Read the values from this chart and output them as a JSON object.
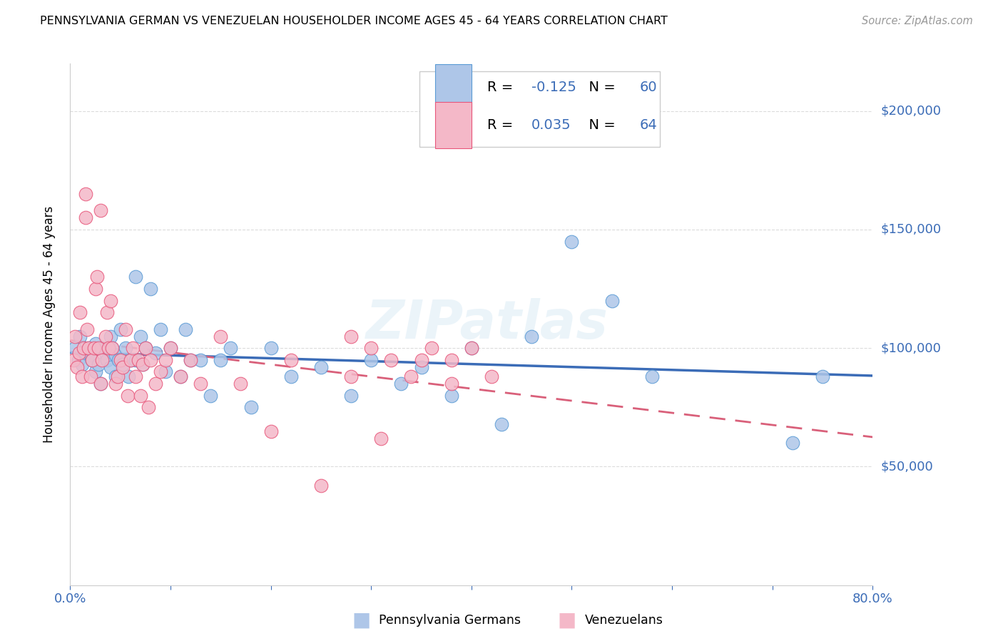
{
  "title": "PENNSYLVANIA GERMAN VS VENEZUELAN HOUSEHOLDER INCOME AGES 45 - 64 YEARS CORRELATION CHART",
  "source": "Source: ZipAtlas.com",
  "ylabel": "Householder Income Ages 45 - 64 years",
  "ytick_labels": [
    "$50,000",
    "$100,000",
    "$150,000",
    "$200,000"
  ],
  "ytick_values": [
    50000,
    100000,
    150000,
    200000
  ],
  "ylim": [
    0,
    220000
  ],
  "xlim": [
    0.0,
    0.8
  ],
  "R_blue": -0.125,
  "N_blue": 60,
  "R_pink": 0.035,
  "N_pink": 64,
  "color_blue_fill": "#AEC6E8",
  "color_pink_fill": "#F4B8C8",
  "color_blue_edge": "#5B9BD5",
  "color_pink_edge": "#E8567A",
  "color_blue_line": "#3B6CB7",
  "color_pink_line": "#D9607A",
  "color_blue_text": "#3B6CB7",
  "color_axis_text": "#3B6CB7",
  "color_grid": "#CCCCCC",
  "watermark": "ZIPatlas",
  "blue_scatter_x": [
    0.005,
    0.008,
    0.01,
    0.012,
    0.015,
    0.018,
    0.02,
    0.022,
    0.025,
    0.025,
    0.028,
    0.03,
    0.032,
    0.035,
    0.037,
    0.04,
    0.04,
    0.042,
    0.045,
    0.045,
    0.048,
    0.05,
    0.052,
    0.055,
    0.058,
    0.06,
    0.065,
    0.065,
    0.07,
    0.072,
    0.075,
    0.08,
    0.085,
    0.09,
    0.095,
    0.1,
    0.11,
    0.115,
    0.12,
    0.13,
    0.14,
    0.15,
    0.16,
    0.18,
    0.2,
    0.22,
    0.25,
    0.28,
    0.3,
    0.33,
    0.35,
    0.38,
    0.4,
    0.43,
    0.46,
    0.5,
    0.54,
    0.58,
    0.72,
    0.75
  ],
  "blue_scatter_y": [
    100000,
    95000,
    105000,
    93000,
    98000,
    100000,
    97000,
    95000,
    102000,
    90000,
    93000,
    85000,
    100000,
    98000,
    95000,
    105000,
    92000,
    100000,
    97000,
    88000,
    95000,
    108000,
    93000,
    100000,
    88000,
    95000,
    130000,
    95000,
    105000,
    93000,
    100000,
    125000,
    98000,
    108000,
    90000,
    100000,
    88000,
    108000,
    95000,
    95000,
    80000,
    95000,
    100000,
    75000,
    100000,
    88000,
    92000,
    80000,
    95000,
    85000,
    92000,
    80000,
    100000,
    68000,
    105000,
    145000,
    120000,
    88000,
    60000,
    88000
  ],
  "pink_scatter_x": [
    0.003,
    0.005,
    0.007,
    0.009,
    0.01,
    0.012,
    0.013,
    0.015,
    0.015,
    0.017,
    0.018,
    0.02,
    0.022,
    0.024,
    0.025,
    0.027,
    0.028,
    0.03,
    0.03,
    0.032,
    0.035,
    0.037,
    0.038,
    0.04,
    0.042,
    0.045,
    0.047,
    0.05,
    0.052,
    0.055,
    0.057,
    0.06,
    0.062,
    0.065,
    0.068,
    0.07,
    0.072,
    0.075,
    0.078,
    0.08,
    0.085,
    0.09,
    0.095,
    0.1,
    0.11,
    0.12,
    0.13,
    0.15,
    0.17,
    0.2,
    0.22,
    0.25,
    0.28,
    0.31,
    0.35,
    0.38,
    0.28,
    0.3,
    0.32,
    0.34,
    0.36,
    0.38,
    0.4,
    0.42
  ],
  "pink_scatter_y": [
    95000,
    105000,
    92000,
    98000,
    115000,
    88000,
    100000,
    155000,
    165000,
    108000,
    100000,
    88000,
    95000,
    100000,
    125000,
    130000,
    100000,
    85000,
    158000,
    95000,
    105000,
    115000,
    100000,
    120000,
    100000,
    85000,
    88000,
    95000,
    92000,
    108000,
    80000,
    95000,
    100000,
    88000,
    95000,
    80000,
    93000,
    100000,
    75000,
    95000,
    85000,
    90000,
    95000,
    100000,
    88000,
    95000,
    85000,
    105000,
    85000,
    65000,
    95000,
    42000,
    88000,
    62000,
    95000,
    85000,
    105000,
    100000,
    95000,
    88000,
    100000,
    95000,
    100000,
    88000
  ]
}
